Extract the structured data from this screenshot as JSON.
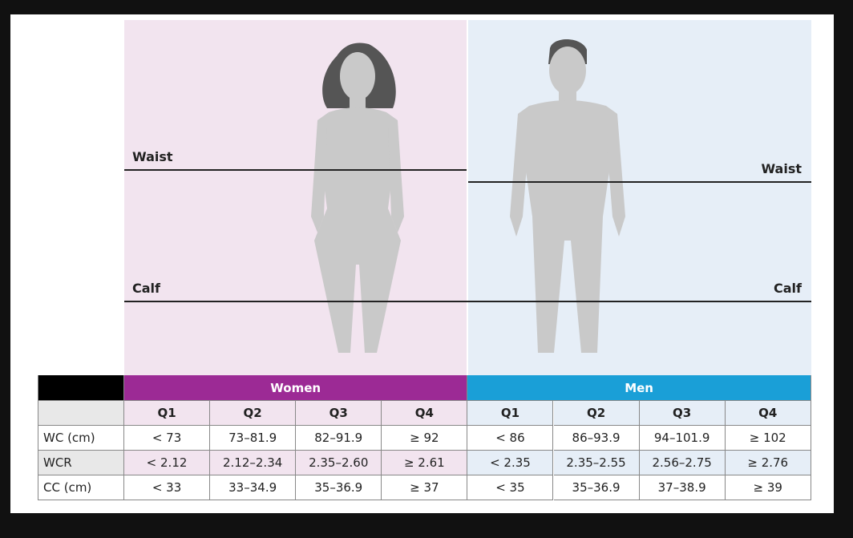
{
  "figure": {
    "labels": {
      "women_waist": "Waist",
      "women_calf": "Calf",
      "men_waist": "Waist",
      "men_calf": "Calf"
    }
  },
  "table": {
    "groups": [
      "Women",
      "Men"
    ],
    "quartiles": [
      "Q1",
      "Q2",
      "Q3",
      "Q4",
      "Q1",
      "Q2",
      "Q3",
      "Q4"
    ],
    "rows": [
      {
        "label": "WC (cm)",
        "cells": [
          "< 73",
          "73–81.9",
          "82–91.9",
          "≥ 92",
          "< 86",
          "86–93.9",
          "94–101.9",
          "≥ 102"
        ]
      },
      {
        "label": "WCR",
        "cells": [
          "< 2.12",
          "2.12–2.34",
          "2.35–2.60",
          "≥ 2.61",
          "< 2.35",
          "2.35–2.55",
          "2.56–2.75",
          "≥ 2.76"
        ]
      },
      {
        "label": "CC (cm)",
        "cells": [
          "< 33",
          "33–34.9",
          "35–36.9",
          "≥ 37",
          "< 35",
          "35–36.9",
          "37–38.9",
          "≥ 39"
        ]
      }
    ]
  }
}
